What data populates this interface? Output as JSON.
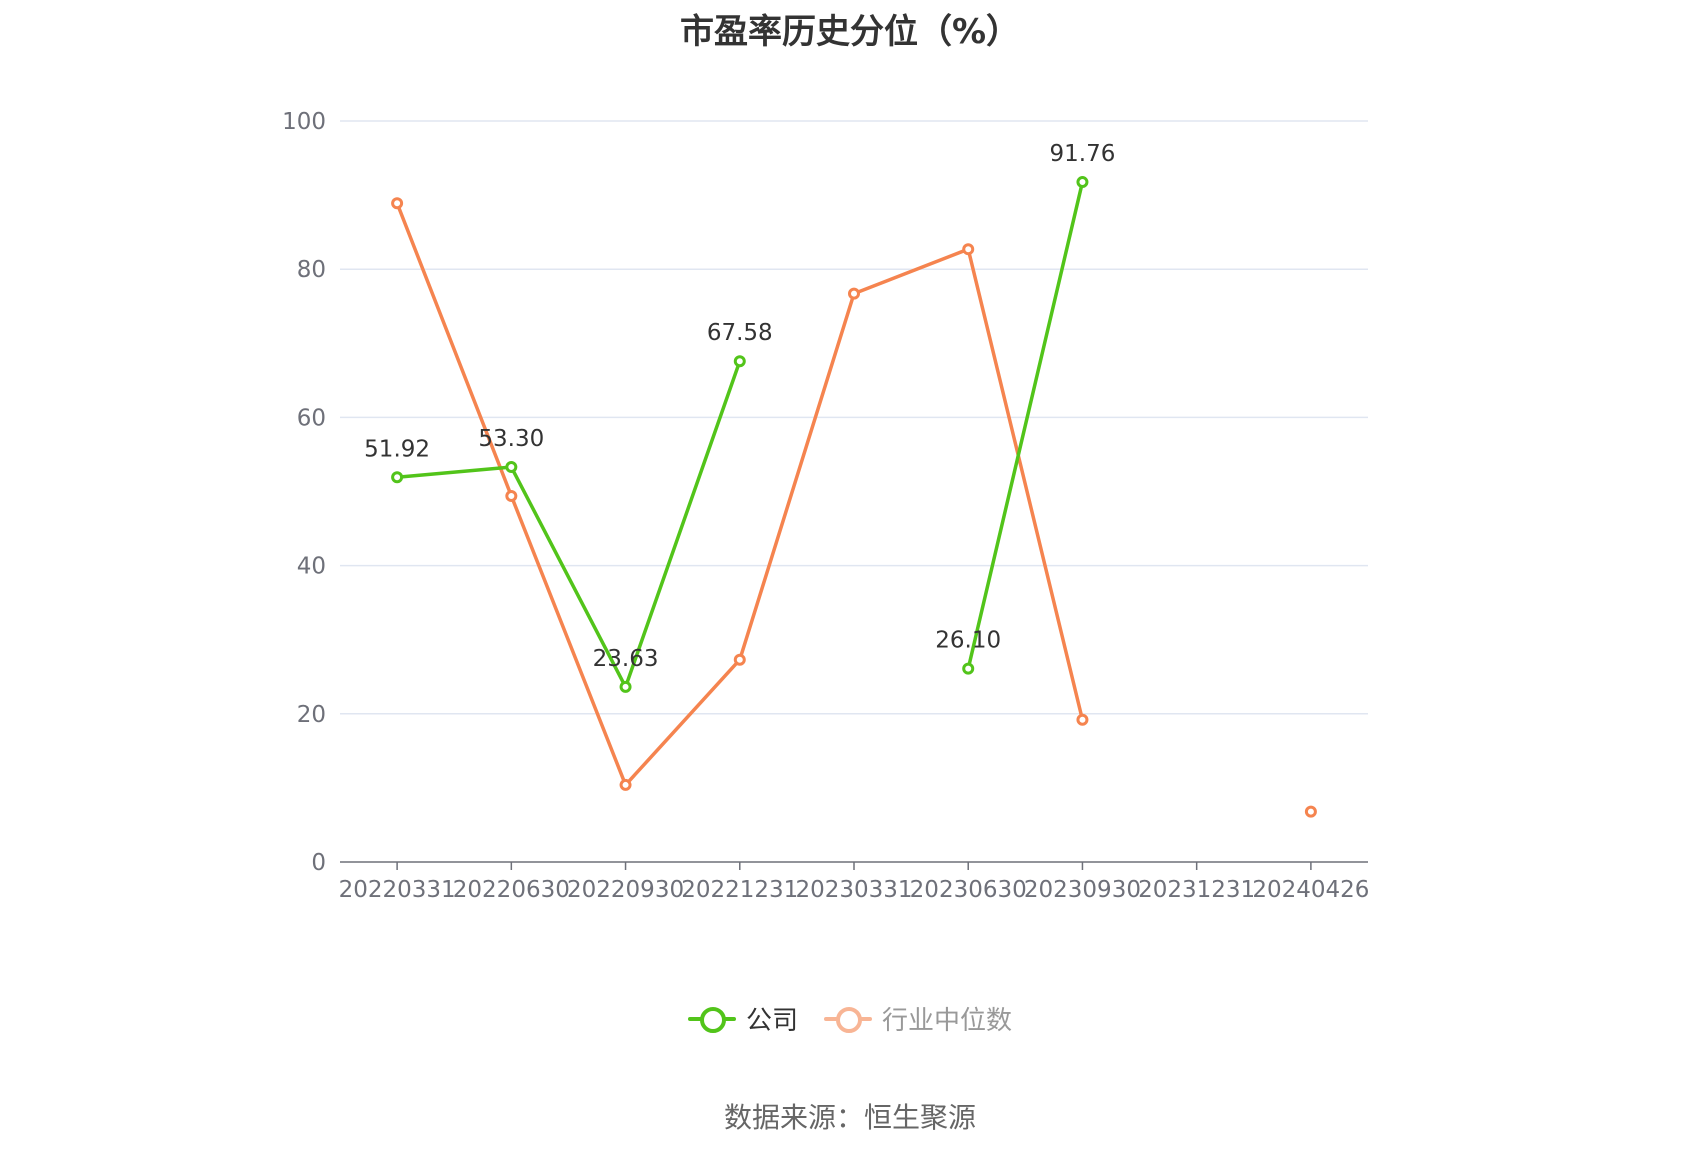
{
  "chart_data": {
    "type": "line",
    "title": "市盈率历史分位（%）",
    "categories": [
      "20220331",
      "20220630",
      "20220930",
      "20221231",
      "20230331",
      "20230630",
      "20230930",
      "20231231",
      "20240426"
    ],
    "ylim": [
      0,
      100
    ],
    "yticks": [
      0,
      20,
      40,
      60,
      80,
      100
    ],
    "grid": true,
    "legend_position": "bottom-center",
    "series": [
      {
        "name": "公司",
        "color": "#52c41a",
        "values": [
          51.92,
          53.3,
          23.63,
          67.58,
          null,
          26.1,
          91.76,
          null,
          null
        ],
        "labels": [
          "51.92",
          "53.30",
          "23.63",
          "67.58",
          "",
          "26.10",
          "91.76",
          "",
          ""
        ]
      },
      {
        "name": "行业中位数",
        "color": "#f5844f",
        "values": [
          88.9,
          49.4,
          10.4,
          27.3,
          76.7,
          82.7,
          19.2,
          null,
          6.8
        ]
      }
    ]
  },
  "source_text": "数据来源：恒生聚源"
}
